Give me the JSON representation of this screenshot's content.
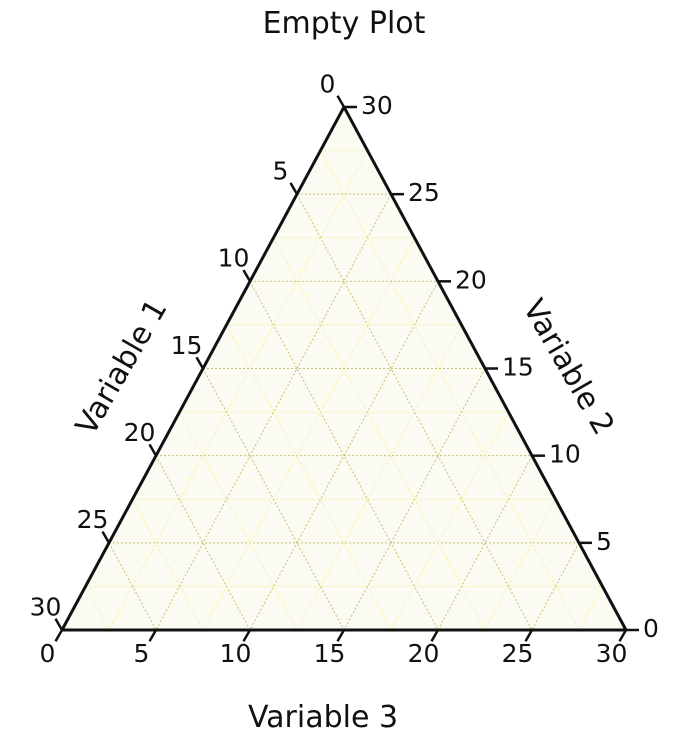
{
  "chart_data": {
    "type": "ternary",
    "title": "Empty Plot",
    "scale": 30,
    "axes": [
      {
        "key": "left",
        "label": "Variable 1",
        "ticks": [
          "0",
          "5",
          "10",
          "15",
          "20",
          "25",
          "30"
        ]
      },
      {
        "key": "right",
        "label": "Variable 2",
        "ticks": [
          "0",
          "5",
          "10",
          "15",
          "20",
          "25",
          "30"
        ]
      },
      {
        "key": "bottom",
        "label": "Variable 3",
        "ticks": [
          "0",
          "5",
          "10",
          "15",
          "20",
          "25",
          "30"
        ]
      }
    ],
    "grid": {
      "minor_step": 2.5,
      "major_step": 5,
      "shown": true
    },
    "colors": {
      "fill": "#fbfbf3",
      "minor_grid": "#f2f29a",
      "major_grid": "#c8c070",
      "boundary": "#111111"
    },
    "series": []
  }
}
